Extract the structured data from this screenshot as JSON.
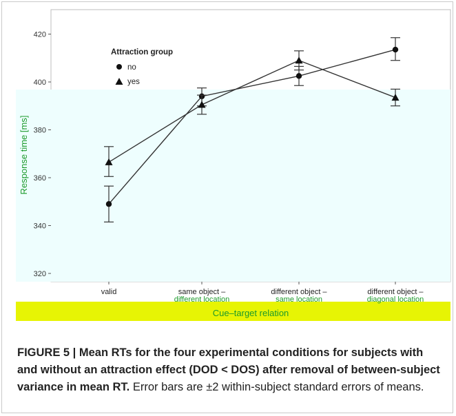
{
  "chart_data": {
    "type": "line",
    "xlabel": "Cue–target relation",
    "ylabel": "Response time [ms]",
    "yticks": [
      320,
      340,
      360,
      380,
      400,
      420
    ],
    "ylim": [
      315,
      425
    ],
    "categories": [
      [
        "valid"
      ],
      [
        "same object –",
        "different location"
      ],
      [
        "different object –",
        "same location"
      ],
      [
        "different object –",
        "diagonal location"
      ]
    ],
    "legend": {
      "title": "Attraction group",
      "placement": "top-left"
    },
    "series": [
      {
        "name": "no",
        "marker": "circle",
        "values": [
          349,
          394,
          402.5,
          413.5
        ],
        "err_low": [
          341.5,
          390,
          398.5,
          409
        ],
        "err_high": [
          356.5,
          397.5,
          406.5,
          418.5
        ]
      },
      {
        "name": "yes",
        "marker": "triangle",
        "values": [
          366.5,
          390.5,
          409,
          393.5
        ],
        "err_low": [
          360.5,
          386.5,
          405,
          390
        ],
        "err_high": [
          373,
          394.5,
          413,
          397
        ]
      }
    ],
    "highlight_colors": {
      "panel": "#eefefe",
      "band": "#e7f404",
      "label": "#1c9a2b"
    }
  },
  "caption": {
    "bold": "FIGURE 5 | Mean RTs for the four experimental conditions for subjects with and without an attraction effect (DOD < DOS) after removal of between-subject variance in mean RT.",
    "normal": " Error bars are ±2 within-subject standard errors of means."
  }
}
